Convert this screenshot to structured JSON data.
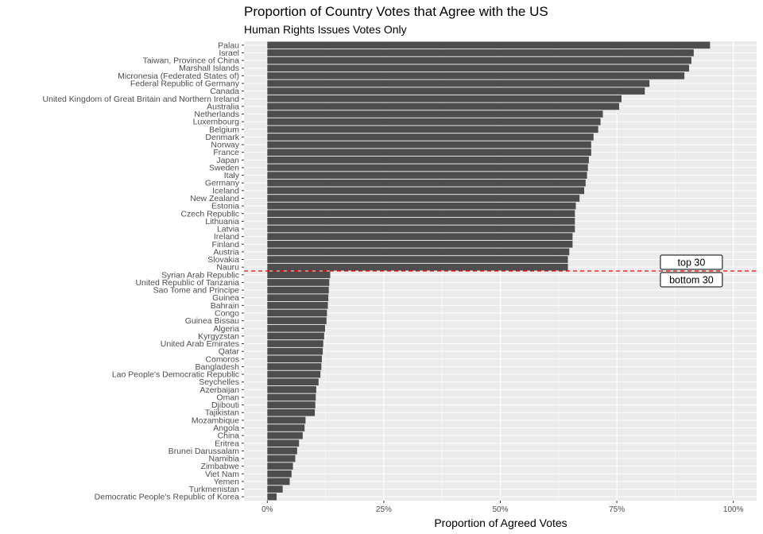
{
  "chart_data": {
    "type": "bar",
    "orientation": "horizontal",
    "title": "Proportion of Country Votes that Agree with the US",
    "subtitle": "Human Rights Issues Votes Only",
    "xlabel": "Proportion of Agreed Votes",
    "ylabel": "",
    "xlim": [
      -0.05,
      1.05
    ],
    "xticks": [
      0,
      0.25,
      0.5,
      0.75,
      1.0
    ],
    "xtick_labels": [
      "0%",
      "25%",
      "50%",
      "75%",
      "100%"
    ],
    "grid": true,
    "bar_color": "#4d4d4d",
    "panel_color": "#ebebeb",
    "categories": [
      "Palau",
      "Israel",
      "Taiwan, Province of China",
      "Marshall Islands",
      "Micronesia (Federated States of)",
      "Federal Republic of Germany",
      "Canada",
      "United Kingdom of Great Britain and Northern Ireland",
      "Australia",
      "Netherlands",
      "Luxembourg",
      "Belgium",
      "Denmark",
      "Norway",
      "France",
      "Japan",
      "Sweden",
      "Italy",
      "Germany",
      "Iceland",
      "New Zealand",
      "Estonia",
      "Czech Republic",
      "Lithuania",
      "Latvia",
      "Ireland",
      "Finland",
      "Austria",
      "Slovakia",
      "Nauru",
      "Syrian Arab Republic",
      "United Republic of Tanzania",
      "Sao Tome and Principe",
      "Guinea",
      "Bahrain",
      "Congo",
      "Guinea Bissau",
      "Algeria",
      "Kyrgyzstan",
      "United Arab Emirates",
      "Qatar",
      "Comoros",
      "Bangladesh",
      "Lao People's Democratic Republic",
      "Seychelles",
      "Azerbaijan",
      "Oman",
      "Djibouti",
      "Tajikistan",
      "Mozambique",
      "Angola",
      "China",
      "Eritrea",
      "Brunei Darussalam",
      "Namibia",
      "Zimbabwe",
      "Viet Nam",
      "Yemen",
      "Turkmenistan",
      "Democratic People's Republic of Korea"
    ],
    "values": [
      0.95,
      0.915,
      0.91,
      0.905,
      0.895,
      0.82,
      0.81,
      0.76,
      0.755,
      0.72,
      0.715,
      0.71,
      0.7,
      0.695,
      0.695,
      0.69,
      0.688,
      0.686,
      0.683,
      0.68,
      0.67,
      0.662,
      0.66,
      0.66,
      0.66,
      0.655,
      0.655,
      0.648,
      0.645,
      0.645,
      0.135,
      0.133,
      0.132,
      0.131,
      0.13,
      0.128,
      0.127,
      0.124,
      0.122,
      0.12,
      0.119,
      0.117,
      0.116,
      0.114,
      0.11,
      0.105,
      0.104,
      0.103,
      0.102,
      0.082,
      0.08,
      0.076,
      0.068,
      0.064,
      0.06,
      0.055,
      0.052,
      0.048,
      0.033,
      0.02
    ],
    "reference_line": {
      "style": "dashed",
      "color": "#ff0000",
      "between": [
        "Nauru",
        "Syrian Arab Republic"
      ]
    },
    "annotations": {
      "top_label": "top 30",
      "bottom_label": "bottom 30",
      "x": 0.91
    }
  }
}
